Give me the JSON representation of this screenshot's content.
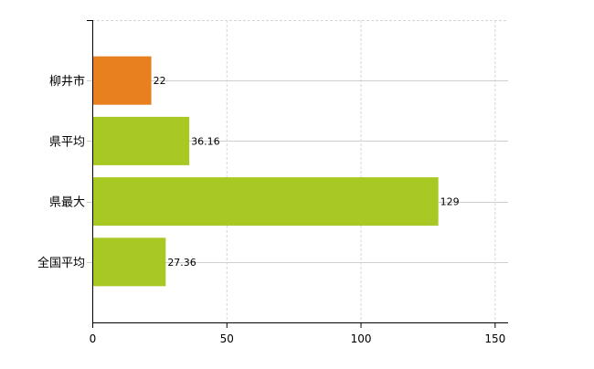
{
  "chart_data": {
    "type": "bar",
    "orientation": "horizontal",
    "categories": [
      "柳井市",
      "県平均",
      "県最大",
      "全国平均"
    ],
    "values": [
      22,
      36.16,
      129,
      27.36
    ],
    "data_labels": [
      "22",
      "36.16",
      "129",
      "27.36"
    ],
    "bar_colors": [
      "#e8801f",
      "#a8c923",
      "#a8c923",
      "#a8c923"
    ],
    "xlim": [
      0,
      155
    ],
    "xticks": [
      0,
      50,
      100,
      150
    ],
    "xtick_labels": [
      "0",
      "50",
      "100",
      "150"
    ],
    "title": "",
    "xlabel": "",
    "ylabel": "",
    "grid": true,
    "legend": "none"
  }
}
